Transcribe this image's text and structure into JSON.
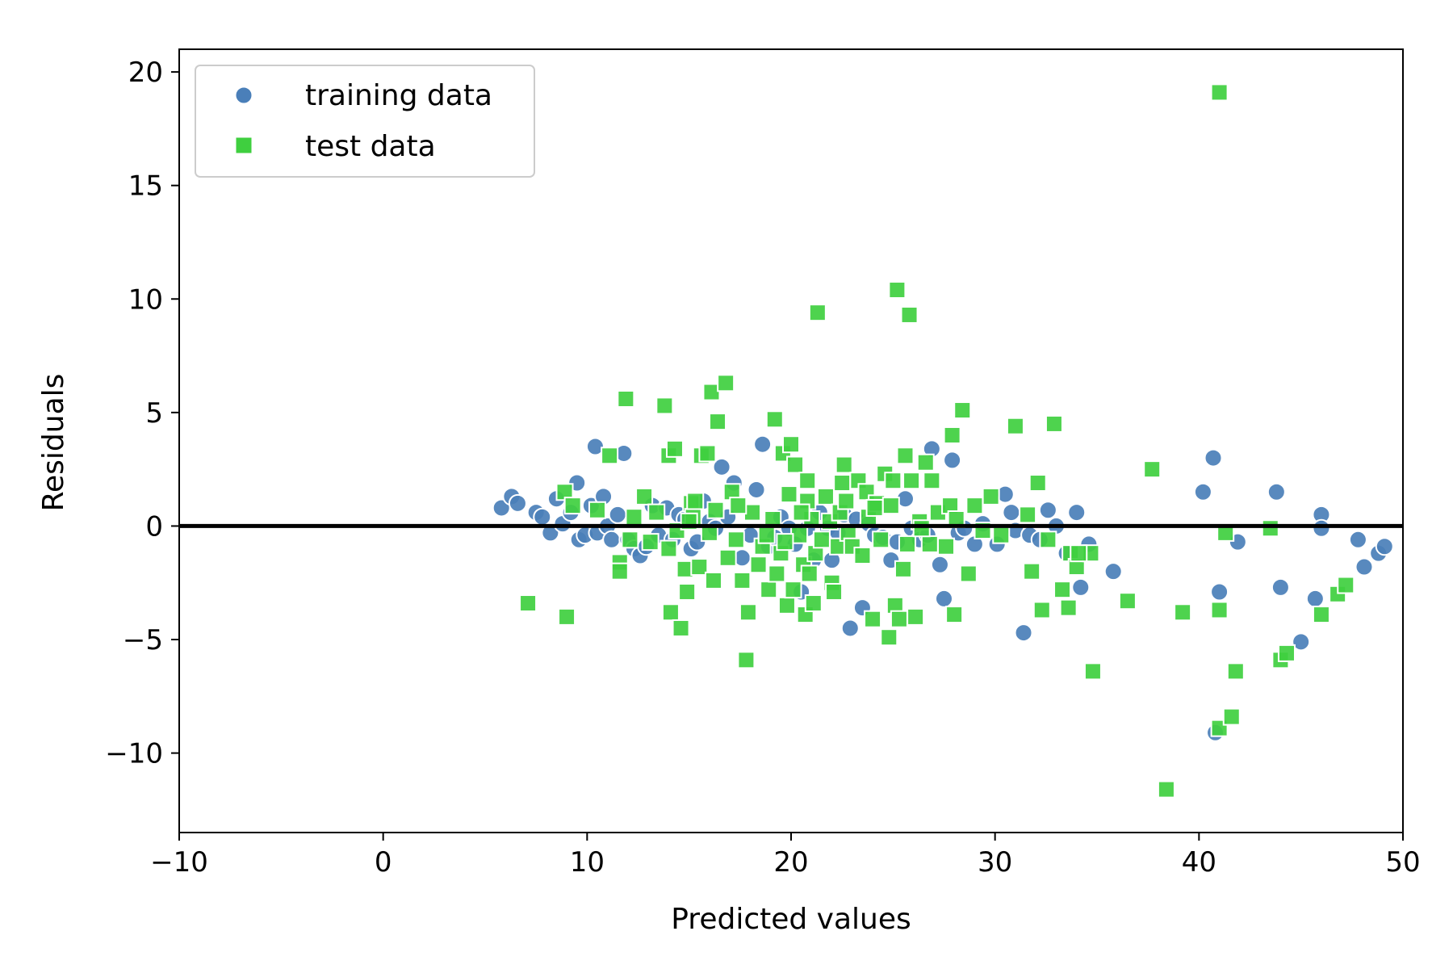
{
  "chart_data": {
    "type": "scatter",
    "xlabel": "Predicted values",
    "ylabel": "Residuals",
    "xlim": [
      -10,
      50
    ],
    "ylim": [
      -13.5,
      21
    ],
    "xticks": [
      -10,
      0,
      10,
      20,
      30,
      40,
      50
    ],
    "yticks": [
      -10,
      -5,
      0,
      5,
      10,
      15,
      20
    ],
    "xtick_labels": [
      "−10",
      "0",
      "10",
      "20",
      "30",
      "40",
      "50"
    ],
    "ytick_labels": [
      "−10",
      "−5",
      "0",
      "5",
      "10",
      "15",
      "20"
    ],
    "grid": false,
    "legend_position": "top-left",
    "reference_line": {
      "y": 0,
      "color": "#000000"
    },
    "series": [
      {
        "name": "training data",
        "marker": "circle",
        "color": "#4a7fb9",
        "points": [
          [
            5.8,
            0.8
          ],
          [
            6.3,
            1.3
          ],
          [
            6.6,
            1.0
          ],
          [
            7.5,
            0.6
          ],
          [
            7.8,
            0.4
          ],
          [
            8.2,
            -0.3
          ],
          [
            8.5,
            1.2
          ],
          [
            8.8,
            0.1
          ],
          [
            9.2,
            0.6
          ],
          [
            9.5,
            1.9
          ],
          [
            9.6,
            -0.6
          ],
          [
            9.9,
            -0.4
          ],
          [
            10.2,
            0.9
          ],
          [
            10.4,
            3.5
          ],
          [
            10.5,
            -0.3
          ],
          [
            10.8,
            1.3
          ],
          [
            11.0,
            0.0
          ],
          [
            11.2,
            -0.6
          ],
          [
            11.5,
            0.5
          ],
          [
            11.8,
            3.2
          ],
          [
            12.0,
            -0.6
          ],
          [
            12.3,
            -1.0
          ],
          [
            12.6,
            -1.3
          ],
          [
            12.9,
            -0.9
          ],
          [
            13.2,
            0.9
          ],
          [
            13.5,
            -0.4
          ],
          [
            13.9,
            0.8
          ],
          [
            14.2,
            -0.6
          ],
          [
            14.5,
            0.5
          ],
          [
            14.8,
            0.3
          ],
          [
            15.1,
            -1.0
          ],
          [
            15.4,
            -0.7
          ],
          [
            15.7,
            1.1
          ],
          [
            16.0,
            0.2
          ],
          [
            16.3,
            -0.1
          ],
          [
            16.6,
            2.6
          ],
          [
            16.9,
            0.4
          ],
          [
            17.2,
            1.9
          ],
          [
            17.6,
            -1.4
          ],
          [
            18.0,
            -0.4
          ],
          [
            18.3,
            1.6
          ],
          [
            18.6,
            3.6
          ],
          [
            18.9,
            -0.9
          ],
          [
            19.2,
            -0.5
          ],
          [
            19.5,
            0.4
          ],
          [
            19.9,
            -0.1
          ],
          [
            20.2,
            -0.8
          ],
          [
            20.5,
            -2.9
          ],
          [
            20.8,
            -0.1
          ],
          [
            21.1,
            -1.5
          ],
          [
            21.4,
            0.6
          ],
          [
            21.8,
            -0.1
          ],
          [
            22.0,
            -1.5
          ],
          [
            22.3,
            -0.3
          ],
          [
            22.6,
            0.5
          ],
          [
            22.9,
            -4.5
          ],
          [
            23.2,
            0.3
          ],
          [
            23.5,
            -3.6
          ],
          [
            23.8,
            0.1
          ],
          [
            24.1,
            -0.4
          ],
          [
            24.5,
            -0.5
          ],
          [
            24.9,
            -1.5
          ],
          [
            25.2,
            -0.7
          ],
          [
            25.6,
            1.2
          ],
          [
            25.9,
            -0.1
          ],
          [
            26.3,
            -0.6
          ],
          [
            26.7,
            -0.4
          ],
          [
            26.9,
            3.4
          ],
          [
            27.3,
            -1.7
          ],
          [
            27.5,
            -3.2
          ],
          [
            27.9,
            2.9
          ],
          [
            28.2,
            -0.3
          ],
          [
            28.5,
            -0.1
          ],
          [
            29.0,
            -0.8
          ],
          [
            29.4,
            0.1
          ],
          [
            30.1,
            -0.8
          ],
          [
            30.5,
            1.4
          ],
          [
            30.8,
            0.6
          ],
          [
            31.0,
            -0.2
          ],
          [
            31.4,
            -4.7
          ],
          [
            31.7,
            -0.4
          ],
          [
            32.2,
            -0.6
          ],
          [
            32.6,
            0.7
          ],
          [
            33.0,
            0.0
          ],
          [
            33.5,
            -1.2
          ],
          [
            34.0,
            0.6
          ],
          [
            34.2,
            -2.7
          ],
          [
            34.6,
            -0.8
          ],
          [
            35.8,
            -2.0
          ],
          [
            40.2,
            1.5
          ],
          [
            40.7,
            3.0
          ],
          [
            41.0,
            -2.9
          ],
          [
            41.9,
            -0.7
          ],
          [
            43.8,
            1.5
          ],
          [
            44.0,
            -2.7
          ],
          [
            45.7,
            -3.2
          ],
          [
            46.0,
            0.5
          ],
          [
            46.0,
            -0.1
          ],
          [
            47.8,
            -0.6
          ],
          [
            48.1,
            -1.8
          ],
          [
            48.8,
            -1.2
          ],
          [
            49.1,
            -0.9
          ],
          [
            45.0,
            -5.1
          ],
          [
            40.8,
            -9.1
          ]
        ]
      },
      {
        "name": "test data",
        "marker": "square",
        "color": "#3fcf3f",
        "points": [
          [
            7.1,
            -3.4
          ],
          [
            8.9,
            1.5
          ],
          [
            9.0,
            -4.0
          ],
          [
            9.3,
            0.9
          ],
          [
            10.5,
            0.7
          ],
          [
            11.1,
            3.1
          ],
          [
            11.6,
            -1.6
          ],
          [
            11.6,
            -2.0
          ],
          [
            11.9,
            5.6
          ],
          [
            12.1,
            -0.6
          ],
          [
            12.3,
            0.4
          ],
          [
            12.8,
            1.3
          ],
          [
            13.4,
            0.6
          ],
          [
            13.8,
            5.3
          ],
          [
            14.0,
            3.1
          ],
          [
            14.0,
            -1.0
          ],
          [
            14.1,
            -3.8
          ],
          [
            14.3,
            3.4
          ],
          [
            14.4,
            -0.2
          ],
          [
            14.6,
            -4.5
          ],
          [
            14.8,
            -1.9
          ],
          [
            14.9,
            -2.9
          ],
          [
            15.1,
            1.0
          ],
          [
            15.2,
            0.4
          ],
          [
            15.3,
            1.1
          ],
          [
            15.5,
            -1.8
          ],
          [
            15.6,
            3.1
          ],
          [
            15.9,
            3.2
          ],
          [
            16.0,
            -0.3
          ],
          [
            16.1,
            5.9
          ],
          [
            16.2,
            -2.4
          ],
          [
            16.3,
            0.7
          ],
          [
            16.4,
            4.6
          ],
          [
            16.8,
            6.3
          ],
          [
            16.9,
            -1.4
          ],
          [
            17.1,
            1.5
          ],
          [
            17.3,
            -0.6
          ],
          [
            17.6,
            -2.4
          ],
          [
            17.8,
            -5.9
          ],
          [
            17.9,
            -3.8
          ],
          [
            18.1,
            0.6
          ],
          [
            18.4,
            -1.7
          ],
          [
            18.6,
            -0.9
          ],
          [
            18.9,
            -2.8
          ],
          [
            19.1,
            0.3
          ],
          [
            19.2,
            4.7
          ],
          [
            19.3,
            -2.1
          ],
          [
            19.5,
            -1.2
          ],
          [
            19.6,
            3.2
          ],
          [
            19.8,
            -3.5
          ],
          [
            19.9,
            1.4
          ],
          [
            20.0,
            3.6
          ],
          [
            20.1,
            -2.8
          ],
          [
            20.2,
            2.7
          ],
          [
            20.4,
            -0.4
          ],
          [
            20.6,
            -1.7
          ],
          [
            20.7,
            -3.9
          ],
          [
            20.8,
            1.1
          ],
          [
            20.8,
            2.0
          ],
          [
            20.9,
            -2.1
          ],
          [
            21.0,
            0.3
          ],
          [
            21.1,
            -3.4
          ],
          [
            21.2,
            -1.2
          ],
          [
            21.3,
            9.4
          ],
          [
            21.5,
            -0.6
          ],
          [
            21.7,
            1.3
          ],
          [
            21.9,
            0.2
          ],
          [
            22.0,
            -2.5
          ],
          [
            22.1,
            -2.9
          ],
          [
            22.3,
            -0.9
          ],
          [
            22.4,
            0.6
          ],
          [
            22.5,
            1.9
          ],
          [
            22.6,
            2.7
          ],
          [
            22.8,
            -0.3
          ],
          [
            23.0,
            -0.9
          ],
          [
            23.3,
            2.0
          ],
          [
            23.5,
            -1.3
          ],
          [
            23.7,
            1.5
          ],
          [
            23.8,
            0.4
          ],
          [
            24.0,
            -4.1
          ],
          [
            24.2,
            1.0
          ],
          [
            24.4,
            -0.6
          ],
          [
            24.6,
            2.3
          ],
          [
            24.8,
            -4.9
          ],
          [
            24.9,
            0.9
          ],
          [
            25.0,
            2.0
          ],
          [
            25.1,
            -3.5
          ],
          [
            25.2,
            10.4
          ],
          [
            25.3,
            -4.1
          ],
          [
            25.5,
            -1.9
          ],
          [
            25.6,
            3.1
          ],
          [
            25.7,
            -0.8
          ],
          [
            25.8,
            9.3
          ],
          [
            25.9,
            2.0
          ],
          [
            26.1,
            -4.0
          ],
          [
            26.3,
            0.2
          ],
          [
            26.6,
            2.8
          ],
          [
            26.8,
            -0.8
          ],
          [
            26.9,
            2.0
          ],
          [
            27.2,
            0.6
          ],
          [
            27.6,
            -0.9
          ],
          [
            27.8,
            0.9
          ],
          [
            27.9,
            4.0
          ],
          [
            28.0,
            -3.9
          ],
          [
            28.1,
            0.3
          ],
          [
            28.4,
            5.1
          ],
          [
            28.7,
            -2.1
          ],
          [
            29.0,
            0.9
          ],
          [
            29.4,
            -0.2
          ],
          [
            29.8,
            1.3
          ],
          [
            30.3,
            -0.4
          ],
          [
            31.0,
            4.4
          ],
          [
            31.6,
            0.5
          ],
          [
            31.8,
            -2.0
          ],
          [
            32.1,
            1.9
          ],
          [
            32.3,
            -3.7
          ],
          [
            32.6,
            -0.6
          ],
          [
            32.9,
            4.5
          ],
          [
            33.3,
            -2.8
          ],
          [
            33.6,
            -3.6
          ],
          [
            33.7,
            -1.2
          ],
          [
            34.0,
            -1.8
          ],
          [
            34.7,
            -1.2
          ],
          [
            34.8,
            -6.4
          ],
          [
            36.5,
            -3.3
          ],
          [
            37.7,
            2.5
          ],
          [
            38.4,
            -11.6
          ],
          [
            39.2,
            -3.8
          ],
          [
            41.0,
            19.1
          ],
          [
            41.0,
            -3.7
          ],
          [
            41.0,
            -8.9
          ],
          [
            41.3,
            -0.3
          ],
          [
            41.6,
            -8.4
          ],
          [
            41.8,
            -6.4
          ],
          [
            43.5,
            -0.1
          ],
          [
            44.0,
            -5.9
          ],
          [
            44.3,
            -5.6
          ],
          [
            46.0,
            -3.9
          ],
          [
            46.8,
            -3.0
          ],
          [
            47.2,
            -2.6
          ],
          [
            34.1,
            -1.2
          ],
          [
            26.4,
            -0.1
          ],
          [
            20.5,
            0.6
          ],
          [
            18.8,
            -0.4
          ],
          [
            15.0,
            0.2
          ],
          [
            22.7,
            1.1
          ],
          [
            24.1,
            0.8
          ],
          [
            13.1,
            -0.7
          ],
          [
            17.4,
            0.9
          ],
          [
            19.7,
            -0.7
          ]
        ]
      }
    ]
  }
}
